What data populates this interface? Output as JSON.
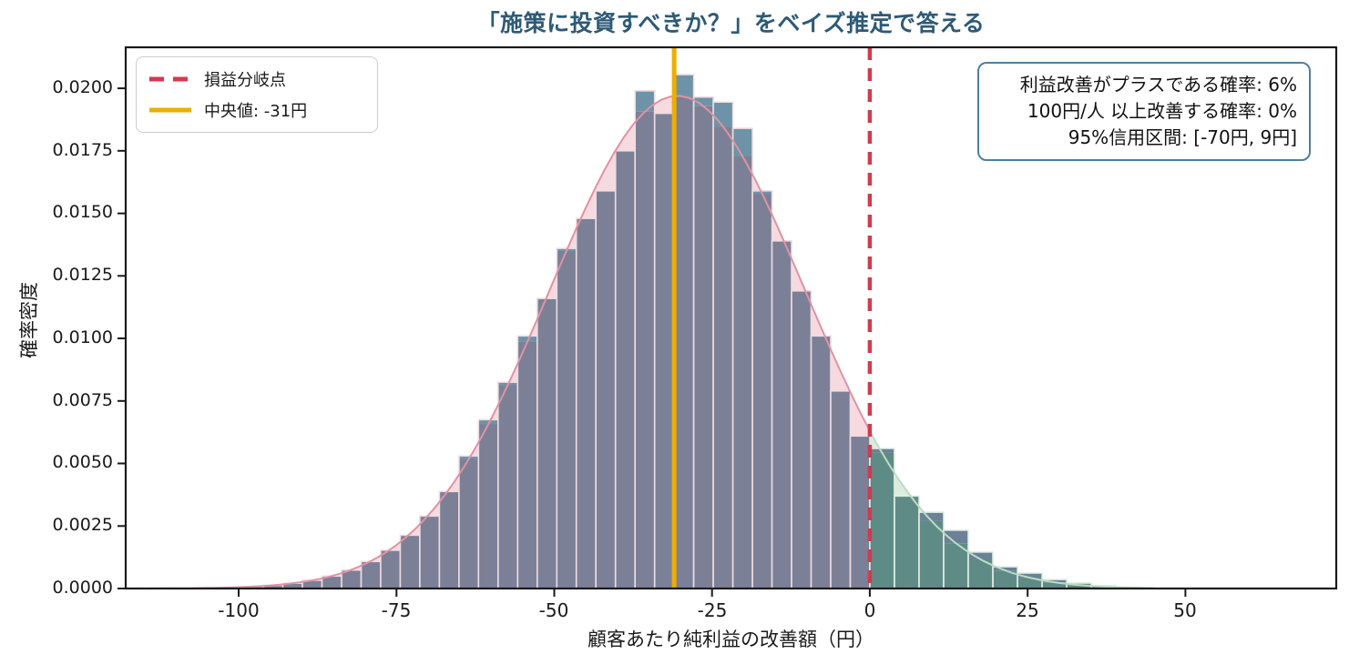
{
  "title": {
    "text": "「施策に投資すべきか？」をベイズ推定で答える",
    "color": "#2D5A77"
  },
  "legend": {
    "items": [
      {
        "label": "損益分岐点",
        "color": "#D13A4F",
        "style": "dashed"
      },
      {
        "label": "中央値: -31円",
        "color": "#EDAE01",
        "style": "solid"
      }
    ]
  },
  "annotation": {
    "lines": [
      "利益改善がプラスである確率: 6%",
      "100円/人 以上改善する確率: 0%",
      "95%信用区間: [-70円, 9円]"
    ],
    "border_color": "#4E7FA0"
  },
  "axes": {
    "x": {
      "label": "顧客あたり純利益の改善額（円）",
      "ticks": [
        "-100",
        "-75",
        "-50",
        "-25",
        "0",
        "25",
        "50"
      ]
    },
    "y": {
      "label": "確率密度",
      "ticks": [
        "0.0000",
        "0.0025",
        "0.0050",
        "0.0075",
        "0.0100",
        "0.0125",
        "0.0150",
        "0.0175",
        "0.0200"
      ]
    }
  },
  "chart_data": {
    "type": "bar",
    "subtype": "histogram-with-kde",
    "title": "「施策に投資すべきか？」をベイズ推定で答える",
    "xlabel": "顧客あたり純利益の改善額（円）",
    "ylabel": "確率密度",
    "x_range": [
      -117.9,
      73.9
    ],
    "y_range": [
      0,
      0.02164
    ],
    "x_tick_values": [
      -100,
      -75,
      -50,
      -25,
      0,
      25,
      50
    ],
    "y_tick_values": [
      0,
      0.0025,
      0.005,
      0.0075,
      0.01,
      0.0125,
      0.015,
      0.0175,
      0.02
    ],
    "stats": {
      "median_yen": -31,
      "p_positive": "6%",
      "p_over_100yen": "0%",
      "ci95": "[-70円, 9円]"
    },
    "kde": {
      "mu": -30.5,
      "sigma": 20.2,
      "peak": 0.0197
    },
    "kde_fills": [
      {
        "from": -114,
        "to": 0,
        "fill": "#F6DAE0",
        "edge": "#DF93A2"
      },
      {
        "from": 0,
        "to": 45.5,
        "fill": "#DCEBDD",
        "edge": "#BBDCC3"
      }
    ],
    "histograms": [
      {
        "name": "negative-improvement",
        "start": -105.4,
        "bin_width": 3.1,
        "fill": "#7B8097",
        "cap": "#6E93A8",
        "edge": "#EFDCE1",
        "heights": [
          3e-05,
          5e-05,
          8e-05,
          0.00013,
          0.00021,
          0.00033,
          0.0005,
          0.00074,
          0.00108,
          0.00153,
          0.00213,
          0.0029,
          0.00388,
          0.0053,
          0.00675,
          0.00825,
          0.0101,
          0.0116,
          0.0136,
          0.0148,
          0.0159,
          0.0175,
          0.0199,
          0.019,
          0.02055,
          0.01965,
          0.01945,
          0.0184,
          0.0159,
          0.0139,
          0.0119,
          0.0101,
          0.0079,
          0.0061
        ]
      },
      {
        "name": "positive-improvement",
        "start": 0,
        "bin_width": 3.9,
        "fill": "#5F8B87",
        "cap": "#6C8197",
        "edge": "#E0EEE3",
        "heights": [
          0.0056,
          0.0037,
          0.00305,
          0.00233,
          0.00146,
          0.00087,
          0.00062,
          0.00036,
          0.00022,
          0.00012,
          5e-05
        ]
      }
    ],
    "vlines": [
      {
        "name": "median-line",
        "x": -31,
        "color": "#EDAE01",
        "width": 5,
        "dash": ""
      },
      {
        "name": "breakeven-line",
        "x": 0,
        "color": "#D13A4F",
        "width": 4.5,
        "dash": "14 9"
      }
    ],
    "frame_color": "#1a1a1a"
  }
}
